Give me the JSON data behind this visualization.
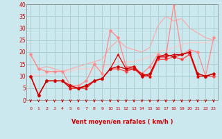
{
  "bg_color": "#cbe8ee",
  "grid_color": "#aacccc",
  "xlabel": "Vent moyen/en rafales ( km/h )",
  "x_values": [
    0,
    1,
    2,
    3,
    4,
    5,
    6,
    7,
    8,
    9,
    10,
    11,
    12,
    13,
    14,
    15,
    16,
    17,
    18,
    19,
    20,
    21,
    22,
    23
  ],
  "series": [
    {
      "y": [
        19,
        13,
        14,
        13,
        12,
        13,
        14,
        15,
        16,
        17,
        22,
        25,
        22,
        21,
        20,
        22,
        31,
        35,
        33,
        34,
        30,
        28,
        26,
        25
      ],
      "color": "#ffaaaa",
      "marker": null,
      "markersize": 0,
      "linewidth": 0.9,
      "zorder": 1
    },
    {
      "y": [
        11,
        10,
        11,
        12,
        12,
        12,
        13,
        13,
        13,
        14,
        15,
        16,
        16,
        16,
        17,
        18,
        20,
        21,
        22,
        23,
        24,
        24,
        24,
        25
      ],
      "color": "#ffcccc",
      "marker": null,
      "markersize": 0,
      "linewidth": 0.9,
      "zorder": 1
    },
    {
      "y": [
        19,
        13,
        12,
        12,
        12,
        6,
        6,
        8,
        15,
        11,
        29,
        26,
        14,
        14,
        11,
        14,
        19,
        18,
        40,
        19,
        21,
        20,
        10,
        26
      ],
      "color": "#ff8888",
      "marker": "D",
      "markersize": 2.5,
      "linewidth": 0.9,
      "zorder": 2
    },
    {
      "y": [
        10,
        2,
        8,
        8,
        8,
        5,
        5,
        6,
        8,
        9,
        13,
        13,
        12,
        13,
        10,
        10,
        17,
        17,
        18,
        17,
        19,
        10,
        10,
        10
      ],
      "color": "#ff4444",
      "marker": "D",
      "markersize": 2.5,
      "linewidth": 0.9,
      "zorder": 3
    },
    {
      "y": [
        10,
        2,
        8,
        8,
        8,
        5,
        5,
        5,
        8,
        9,
        13,
        19,
        13,
        13,
        11,
        10,
        18,
        18,
        19,
        19,
        20,
        10,
        10,
        11
      ],
      "color": "#dd0000",
      "marker": "^",
      "markersize": 2.5,
      "linewidth": 0.9,
      "zorder": 3
    },
    {
      "y": [
        10,
        2,
        8,
        8,
        8,
        6,
        5,
        6,
        8,
        9,
        13,
        14,
        13,
        14,
        10,
        11,
        18,
        19,
        18,
        19,
        20,
        11,
        10,
        11
      ],
      "color": "#cc0000",
      "marker": "D",
      "markersize": 2.5,
      "linewidth": 1.0,
      "zorder": 4
    }
  ],
  "ylim": [
    0,
    40
  ],
  "yticks": [
    0,
    5,
    10,
    15,
    20,
    25,
    30,
    35,
    40
  ],
  "xlim": [
    -0.5,
    23.5
  ],
  "arrow_color": "#cc0000",
  "xlabel_color": "#cc0000",
  "tick_color": "#cc0000",
  "axis_color": "#888888"
}
